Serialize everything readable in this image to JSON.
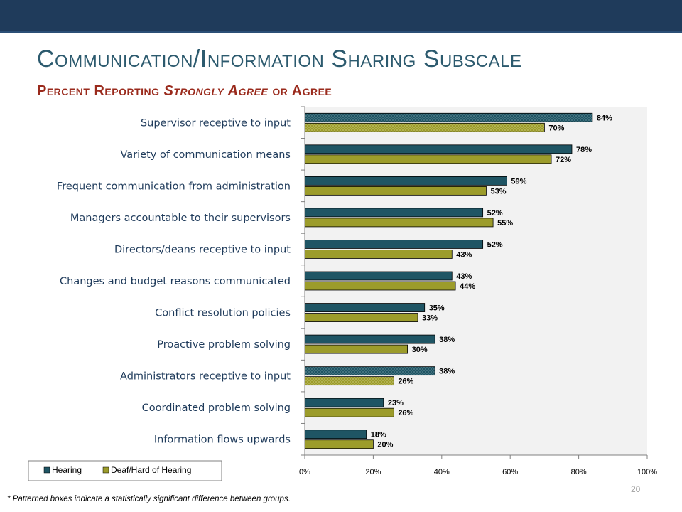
{
  "slide": {
    "title": "Communication/Information Sharing Subscale",
    "subtitle_pre": "Percent Reporting ",
    "subtitle_em": "Strongly Agree",
    "subtitle_post": " or Agree",
    "page_number": "20",
    "footnote": "* Patterned boxes indicate a statistically significant difference between groups."
  },
  "colors": {
    "header_band": "#1f3b5b",
    "title": "#2c5a6e",
    "subtitle": "#9a2a1c",
    "hearing": "#1f5564",
    "deaf": "#9c9c2b",
    "plot_bg": "#f2f2f2"
  },
  "chart_data": {
    "type": "bar",
    "orientation": "horizontal",
    "categories": [
      "Supervisor receptive to input",
      "Variety of communication means",
      "Frequent communication from administration",
      "Managers accountable to their supervisors",
      "Directors/deans receptive to input",
      "Changes and budget reasons communicated",
      "Conflict resolution policies",
      "Proactive problem solving",
      "Administrators receptive to input",
      "Coordinated problem solving",
      "Information flows upwards"
    ],
    "series": [
      {
        "name": "Hearing",
        "values": [
          84,
          78,
          59,
          52,
          52,
          43,
          35,
          38,
          38,
          23,
          18
        ]
      },
      {
        "name": "Deaf/Hard of Hearing",
        "values": [
          70,
          72,
          53,
          55,
          43,
          44,
          33,
          30,
          26,
          26,
          20
        ]
      }
    ],
    "data_labels": {
      "Hearing": [
        "84%",
        "78%",
        "59%",
        "52%",
        "52%",
        "43%",
        "35%",
        "38%",
        "38%",
        "23%",
        "18%"
      ],
      "Deaf/Hard of Hearing": [
        "70%",
        "72%",
        "53%",
        "55%",
        "43%",
        "44%",
        "33%",
        "30%",
        "26%",
        "26%",
        "20%"
      ]
    },
    "patterned": [
      true,
      false,
      false,
      false,
      false,
      false,
      false,
      false,
      true,
      false,
      false
    ],
    "xlim": [
      0,
      100
    ],
    "xticks": [
      0,
      20,
      40,
      60,
      80,
      100
    ],
    "xtick_labels": [
      "0%",
      "20%",
      "40%",
      "60%",
      "80%",
      "100%"
    ],
    "legend": [
      "Hearing",
      "Deaf/Hard of Hearing"
    ],
    "legend_position": "bottom-left",
    "grid": false
  }
}
